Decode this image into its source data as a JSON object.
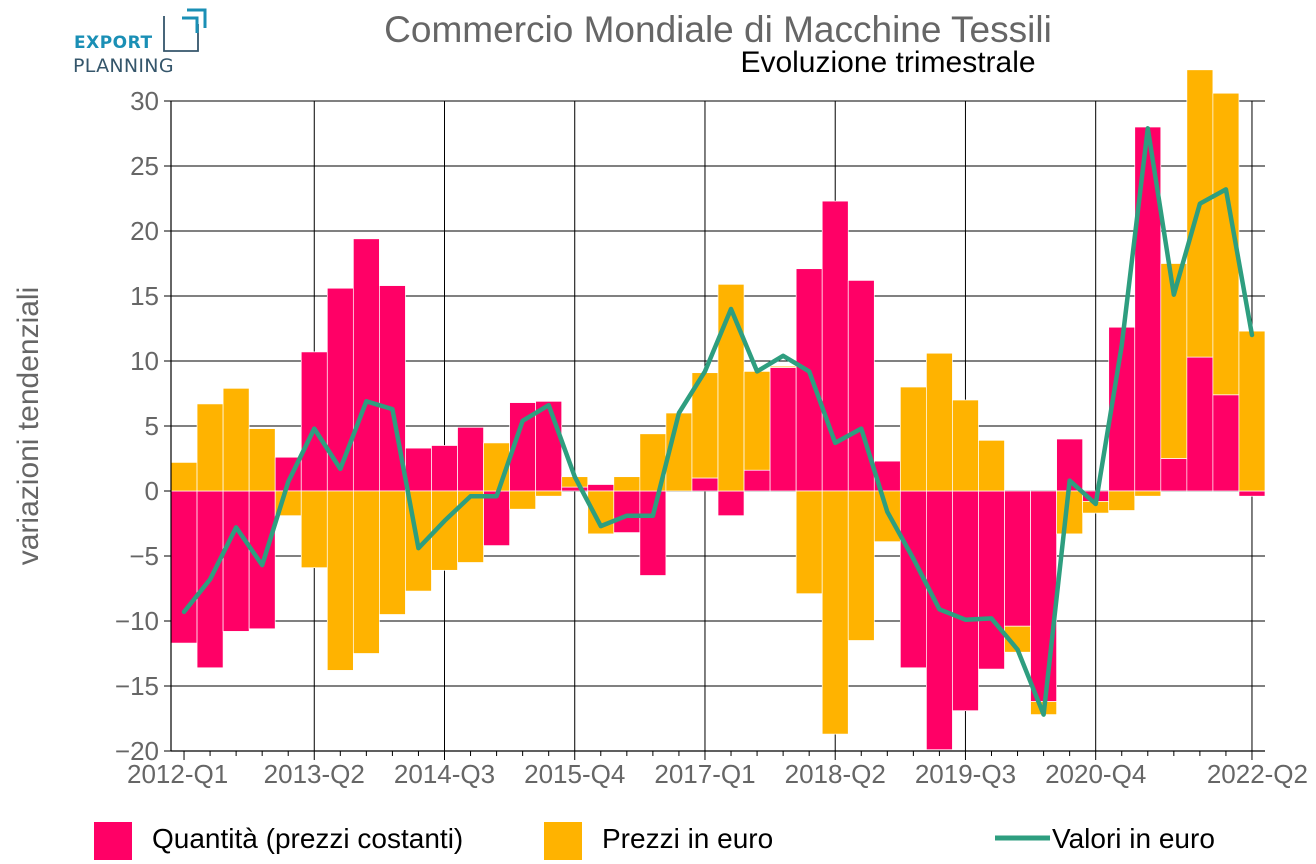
{
  "logo": {
    "line1": "EXPORT",
    "line2": "PLANNING",
    "color_line1": "#1a8fb5",
    "color_line2": "#35566b"
  },
  "chart_data": {
    "type": "bar",
    "title": "Commercio Mondiale di Macchine Tessili",
    "subtitle": "Evoluzione trimestrale",
    "xlabel": "",
    "ylabel": "variazioni tendenziali",
    "ylim": [
      -20,
      30
    ],
    "yticks": [
      30,
      25,
      20,
      15,
      10,
      5,
      0,
      -5,
      -10,
      -15,
      -20
    ],
    "ytick_labels": [
      "30",
      "25",
      "20",
      "15",
      "10",
      "5",
      "0",
      "−5",
      "−10",
      "−15",
      "−20"
    ],
    "grid": true,
    "barmode": "relative",
    "categories": [
      "2012-Q1",
      "2012-Q2",
      "2012-Q3",
      "2012-Q4",
      "2013-Q1",
      "2013-Q2",
      "2013-Q3",
      "2013-Q4",
      "2014-Q1",
      "2014-Q2",
      "2014-Q3",
      "2014-Q4",
      "2015-Q1",
      "2015-Q2",
      "2015-Q3",
      "2015-Q4",
      "2016-Q1",
      "2016-Q2",
      "2016-Q3",
      "2016-Q4",
      "2017-Q1",
      "2017-Q2",
      "2017-Q3",
      "2017-Q4",
      "2018-Q1",
      "2018-Q2",
      "2018-Q3",
      "2018-Q4",
      "2019-Q1",
      "2019-Q2",
      "2019-Q3",
      "2019-Q4",
      "2020-Q1",
      "2020-Q2",
      "2020-Q3",
      "2020-Q4",
      "2021-Q1",
      "2021-Q2",
      "2021-Q3",
      "2021-Q4",
      "2022-Q1",
      "2022-Q2"
    ],
    "xtick_labels": [
      "2012-Q1",
      "2013-Q2",
      "2014-Q3",
      "2015-Q4",
      "2017-Q1",
      "2018-Q2",
      "2019-Q3",
      "2020-Q4",
      "2022-Q2"
    ],
    "series": [
      {
        "name": "Quantità (prezzi costanti)",
        "kind": "bar",
        "color": "#ff0066",
        "values": [
          -11.7,
          -13.6,
          -10.8,
          -10.6,
          2.6,
          10.7,
          15.6,
          19.4,
          15.8,
          3.3,
          3.5,
          4.9,
          -4.2,
          6.8,
          6.9,
          0.3,
          0.5,
          -3.2,
          -6.5,
          0.0,
          1.0,
          -1.9,
          1.6,
          9.5,
          17.1,
          22.3,
          16.2,
          2.3,
          -13.6,
          -19.9,
          -16.9,
          -13.7,
          -10.4,
          -16.2,
          4.0,
          -0.8,
          12.6,
          28.0,
          2.5,
          10.3,
          7.4,
          -0.4
        ]
      },
      {
        "name": "Prezzi in euro",
        "kind": "bar",
        "color": "#ffb300",
        "values": [
          2.2,
          6.7,
          7.9,
          4.8,
          -1.9,
          -5.9,
          -13.8,
          -12.5,
          -9.5,
          -7.7,
          -6.1,
          -5.5,
          3.7,
          -1.4,
          -0.4,
          0.8,
          -3.3,
          1.1,
          4.4,
          6.0,
          8.1,
          15.9,
          7.6,
          0.1,
          -7.9,
          -18.7,
          -11.5,
          -3.9,
          8.0,
          10.6,
          7.0,
          3.9,
          -2.0,
          -1.0,
          -3.3,
          -0.9,
          -1.5,
          -0.4,
          15.0,
          22.1,
          23.2,
          12.3
        ]
      },
      {
        "name": "Valori in euro",
        "kind": "line",
        "color": "#2e9e7f",
        "values": [
          -9.3,
          -6.8,
          -2.8,
          -5.7,
          0.7,
          4.8,
          1.7,
          6.9,
          6.3,
          -4.4,
          -2.3,
          -0.4,
          -0.4,
          5.4,
          6.6,
          1.1,
          -2.7,
          -1.9,
          -1.9,
          6.0,
          9.2,
          14.0,
          9.2,
          10.4,
          9.2,
          3.7,
          4.8,
          -1.6,
          -5.2,
          -9.1,
          -9.9,
          -9.8,
          -12.2,
          -17.2,
          0.8,
          -1.0,
          11.2,
          27.9,
          15.1,
          22.1,
          23.2,
          12.0
        ]
      }
    ],
    "legend": {
      "placement": "bottom"
    }
  }
}
